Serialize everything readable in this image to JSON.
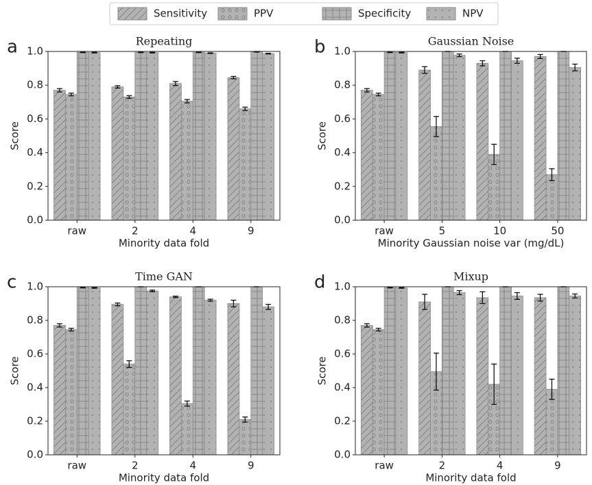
{
  "chart_data": [
    {
      "type": "bar",
      "panel": "a",
      "title": "Repeating",
      "xlabel": "Minority data fold",
      "ylabel": "Score",
      "categories": [
        "raw",
        "2",
        "4",
        "9"
      ],
      "ylim": [
        0,
        1
      ],
      "yticks": [
        {
          "value": 0,
          "label": "0.0"
        },
        {
          "value": 0.2,
          "label": "0.2"
        },
        {
          "value": 0.4,
          "label": "0.4"
        },
        {
          "value": 0.6,
          "label": "0.6"
        },
        {
          "value": 0.8,
          "label": "0.8"
        },
        {
          "value": 1,
          "label": "1.0"
        }
      ],
      "series": [
        {
          "name": "Sensitivity",
          "color": "#b3b3b3",
          "hatch": "/",
          "values": [
            0.77,
            0.79,
            0.81,
            0.845
          ],
          "errors": [
            0.01,
            0.007,
            0.012,
            0.007
          ]
        },
        {
          "name": "PPV",
          "color": "#b3b3b3",
          "hatch": "o",
          "values": [
            0.745,
            0.73,
            0.705,
            0.66
          ],
          "errors": [
            0.008,
            0.008,
            0.01,
            0.01
          ]
        },
        {
          "name": "Specificity",
          "color": "#b3b3b3",
          "hatch": "+",
          "values": [
            0.995,
            0.995,
            0.995,
            0.998
          ],
          "errors": [
            0.002,
            0.002,
            0.002,
            0.002
          ]
        },
        {
          "name": "NPV",
          "color": "#b3b3b3",
          "hatch": ".",
          "values": [
            0.993,
            0.993,
            0.99,
            0.987
          ],
          "errors": [
            0.002,
            0.002,
            0.002,
            0.002
          ]
        }
      ]
    },
    {
      "type": "bar",
      "panel": "b",
      "title": "Gaussian Noise",
      "xlabel": "Minority Gaussian noise var (mg/dL)",
      "ylabel": "Score",
      "categories": [
        "raw",
        "5",
        "10",
        "50"
      ],
      "ylim": [
        0,
        1
      ],
      "yticks": [
        {
          "value": 0,
          "label": "0.0"
        },
        {
          "value": 0.2,
          "label": "0.2"
        },
        {
          "value": 0.4,
          "label": "0.4"
        },
        {
          "value": 0.6,
          "label": "0.6"
        },
        {
          "value": 0.8,
          "label": "0.8"
        },
        {
          "value": 1,
          "label": "1.0"
        }
      ],
      "series": [
        {
          "name": "Sensitivity",
          "color": "#b3b3b3",
          "hatch": "/",
          "values": [
            0.77,
            0.89,
            0.93,
            0.97
          ],
          "errors": [
            0.01,
            0.02,
            0.015,
            0.012
          ]
        },
        {
          "name": "PPV",
          "color": "#b3b3b3",
          "hatch": "o",
          "values": [
            0.745,
            0.555,
            0.39,
            0.27
          ],
          "errors": [
            0.008,
            0.06,
            0.06,
            0.035
          ]
        },
        {
          "name": "Specificity",
          "color": "#b3b3b3",
          "hatch": "+",
          "values": [
            0.995,
            1,
            1,
            1
          ],
          "errors": [
            0.002,
            0,
            0,
            0
          ]
        },
        {
          "name": "NPV",
          "color": "#b3b3b3",
          "hatch": ".",
          "values": [
            0.993,
            0.977,
            0.945,
            0.905
          ],
          "errors": [
            0.002,
            0.008,
            0.015,
            0.02
          ]
        }
      ]
    },
    {
      "type": "bar",
      "panel": "c",
      "title": "Time GAN",
      "xlabel": "Minority data fold",
      "ylabel": "Score",
      "categories": [
        "raw",
        "2",
        "4",
        "9"
      ],
      "ylim": [
        0,
        1
      ],
      "yticks": [
        {
          "value": 0,
          "label": "0.0"
        },
        {
          "value": 0.2,
          "label": "0.2"
        },
        {
          "value": 0.4,
          "label": "0.4"
        },
        {
          "value": 0.6,
          "label": "0.6"
        },
        {
          "value": 0.8,
          "label": "0.8"
        },
        {
          "value": 1,
          "label": "1.0"
        }
      ],
      "series": [
        {
          "name": "Sensitivity",
          "color": "#b3b3b3",
          "hatch": "/",
          "values": [
            0.77,
            0.895,
            0.94,
            0.9
          ],
          "errors": [
            0.01,
            0.008,
            0.004,
            0.02
          ]
        },
        {
          "name": "PPV",
          "color": "#b3b3b3",
          "hatch": "o",
          "values": [
            0.745,
            0.54,
            0.305,
            0.21
          ],
          "errors": [
            0.008,
            0.02,
            0.015,
            0.015
          ]
        },
        {
          "name": "Specificity",
          "color": "#b3b3b3",
          "hatch": "+",
          "values": [
            0.995,
            1,
            1,
            1
          ],
          "errors": [
            0.002,
            0,
            0,
            0
          ]
        },
        {
          "name": "NPV",
          "color": "#b3b3b3",
          "hatch": ".",
          "values": [
            0.993,
            0.975,
            0.92,
            0.88
          ],
          "errors": [
            0.002,
            0.005,
            0.006,
            0.015
          ]
        }
      ]
    },
    {
      "type": "bar",
      "panel": "d",
      "title": "Mixup",
      "xlabel": "Minority data fold",
      "ylabel": "Score",
      "categories": [
        "raw",
        "2",
        "4",
        "9"
      ],
      "ylim": [
        0,
        1
      ],
      "yticks": [
        {
          "value": 0,
          "label": "0.0"
        },
        {
          "value": 0.2,
          "label": "0.2"
        },
        {
          "value": 0.4,
          "label": "0.4"
        },
        {
          "value": 0.6,
          "label": "0.6"
        },
        {
          "value": 0.8,
          "label": "0.8"
        },
        {
          "value": 1,
          "label": "1.0"
        }
      ],
      "series": [
        {
          "name": "Sensitivity",
          "color": "#b3b3b3",
          "hatch": "/",
          "values": [
            0.77,
            0.91,
            0.935,
            0.935
          ],
          "errors": [
            0.01,
            0.045,
            0.035,
            0.02
          ]
        },
        {
          "name": "PPV",
          "color": "#b3b3b3",
          "hatch": "o",
          "values": [
            0.745,
            0.495,
            0.42,
            0.39
          ],
          "errors": [
            0.008,
            0.11,
            0.12,
            0.06
          ]
        },
        {
          "name": "Specificity",
          "color": "#b3b3b3",
          "hatch": "+",
          "values": [
            0.995,
            1,
            1,
            1
          ],
          "errors": [
            0.002,
            0,
            0,
            0
          ]
        },
        {
          "name": "NPV",
          "color": "#b3b3b3",
          "hatch": ".",
          "values": [
            0.993,
            0.965,
            0.945,
            0.945
          ],
          "errors": [
            0.002,
            0.012,
            0.02,
            0.012
          ]
        }
      ]
    }
  ]
}
